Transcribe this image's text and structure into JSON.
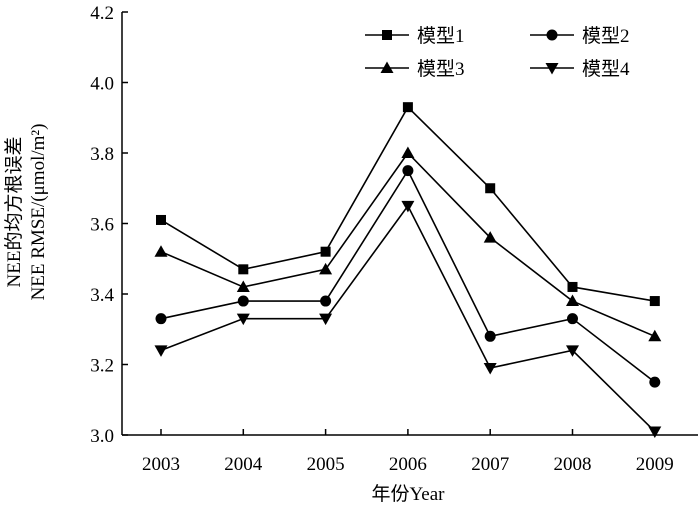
{
  "chart_data": {
    "type": "line",
    "xlabel": "年份Year",
    "ylabel": [
      "NEE的均方根误差",
      "NEE RMSE/(μmol/m²)"
    ],
    "x": [
      "2003",
      "2004",
      "2005",
      "2006",
      "2007",
      "2008",
      "2009"
    ],
    "ylim": [
      3.0,
      4.2
    ],
    "yticks": [
      "3.0",
      "3.2",
      "3.4",
      "3.6",
      "3.8",
      "4.0",
      "4.2"
    ],
    "legend_position": "top-right",
    "series": [
      {
        "name": "模型1",
        "marker": "square",
        "values": [
          3.61,
          3.47,
          3.52,
          3.93,
          3.7,
          3.42,
          3.38
        ]
      },
      {
        "name": "模型2",
        "marker": "circle",
        "values": [
          3.33,
          3.38,
          3.38,
          3.75,
          3.28,
          3.33,
          3.15
        ]
      },
      {
        "name": "模型3",
        "marker": "triangle-up",
        "values": [
          3.52,
          3.42,
          3.47,
          3.8,
          3.56,
          3.38,
          3.28
        ]
      },
      {
        "name": "模型4",
        "marker": "triangle-down",
        "values": [
          3.24,
          3.33,
          3.33,
          3.65,
          3.19,
          3.24,
          3.01
        ]
      }
    ],
    "grid": false
  }
}
